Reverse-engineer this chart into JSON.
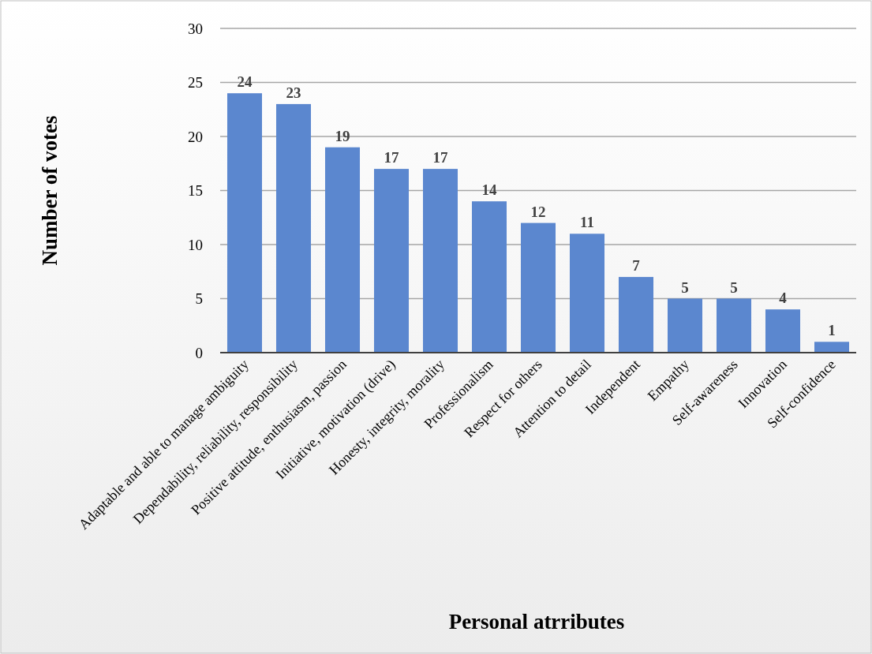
{
  "chart_data": {
    "type": "bar",
    "xlabel": "Personal atrributes",
    "ylabel": "Number of votes",
    "categories": [
      "Adaptable and able to manage ambiguity",
      "Dependability, reliability, responsibility",
      "Positive attitude, enthusiasm, passion",
      "Initiative, motivation (drive)",
      "Honesty, integrity, morality",
      "Professionalism",
      "Respect for others",
      "Attention to detail",
      "Independent",
      "Empathy",
      "Self-awareness",
      "Innovation",
      "Self-confidence"
    ],
    "values": [
      24,
      23,
      19,
      17,
      17,
      14,
      12,
      11,
      7,
      5,
      5,
      4,
      1
    ],
    "color": "#5b87cf",
    "ylim": [
      0,
      30
    ],
    "yticks": [
      0,
      5,
      10,
      15,
      20,
      25,
      30
    ],
    "grid": "y",
    "data_labels": true
  }
}
